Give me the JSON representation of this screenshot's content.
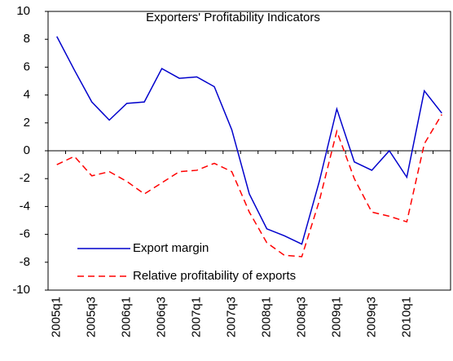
{
  "chart_data": {
    "type": "line",
    "title": "Exporters' Profitability Indicators",
    "categories": [
      "2005q1",
      null,
      "2005q3",
      null,
      "2006q1",
      null,
      "2006q3",
      null,
      "2007q1",
      null,
      "2007q3",
      null,
      "2008q1",
      null,
      "2008q3",
      null,
      "2009q1",
      null,
      "2009q3",
      null,
      "2010q1",
      null,
      null
    ],
    "series": [
      {
        "name": "Export margin",
        "color": "#0000cc",
        "dash": false,
        "values": [
          8.2,
          5.8,
          3.5,
          2.2,
          3.4,
          3.5,
          5.9,
          5.2,
          5.3,
          4.6,
          1.5,
          -3.1,
          -5.6,
          -6.1,
          -6.7,
          -2.2,
          3.0,
          -0.8,
          -1.4,
          0.0,
          -1.9,
          4.3,
          2.7
        ]
      },
      {
        "name": "Relative profitability of exports",
        "color": "#ff0000",
        "dash": true,
        "values": [
          -1.0,
          -0.4,
          -1.8,
          -1.5,
          -2.2,
          -3.1,
          -2.3,
          -1.5,
          -1.4,
          -0.9,
          -1.5,
          -4.4,
          -6.6,
          -7.5,
          -7.6,
          -3.6,
          1.4,
          -2.0,
          -4.4,
          -4.7,
          -5.1,
          0.5,
          2.6
        ]
      }
    ],
    "ylim": [
      -10,
      10
    ],
    "yticks": [
      -10,
      -8,
      -6,
      -4,
      -2,
      0,
      2,
      4,
      6,
      8,
      10
    ],
    "legend": "lower left"
  }
}
